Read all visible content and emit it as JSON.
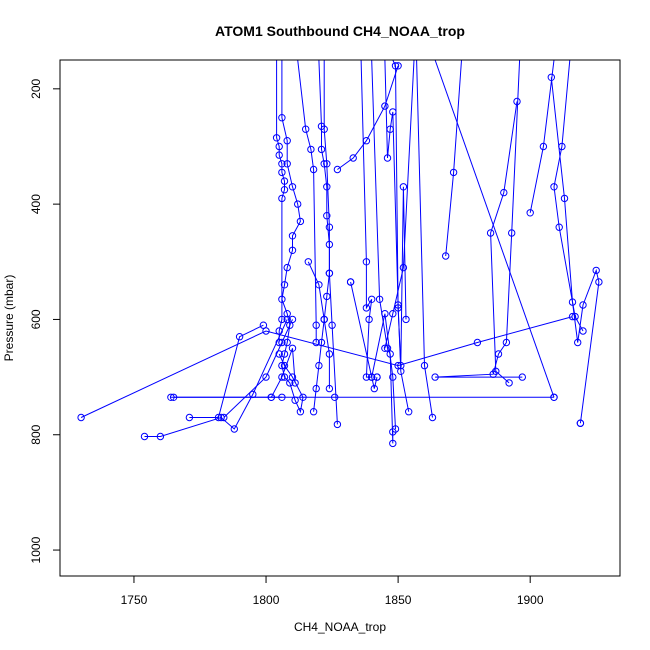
{
  "chart_data": {
    "type": "line",
    "title": "ATOM1 Southbound CH4_NOAA_trop",
    "xlabel": "CH4_NOAA_trop",
    "ylabel": "Pressure (mbar)",
    "xlim": [
      1722,
      1934
    ],
    "ylim": [
      1045,
      150
    ],
    "y_reversed": true,
    "x_ticks": [
      1750,
      1800,
      1850,
      1900
    ],
    "y_ticks": [
      200,
      400,
      600,
      800,
      1000
    ],
    "grid": false,
    "legend": "none",
    "marker": "open-circle",
    "series_color": "#0000ff",
    "series": [
      {
        "x": [
          1806,
          1806,
          1808,
          1808,
          1810,
          1812,
          1813,
          1810,
          1810,
          1808,
          1807,
          1806,
          1808,
          1809,
          1808,
          1807,
          1806,
          1807,
          1809,
          1811,
          1813,
          1814,
          1810,
          1807,
          1805
        ],
        "y": [
          150,
          250,
          290,
          330,
          370,
          400,
          430,
          455,
          480,
          510,
          540,
          565,
          590,
          610,
          640,
          660,
          680,
          700,
          710,
          740,
          760,
          735,
          700,
          680,
          660
        ]
      },
      {
        "x": [
          1804,
          1804,
          1805,
          1805,
          1806,
          1806,
          1807,
          1807,
          1806,
          1806,
          1805,
          1805
        ],
        "y": [
          150,
          285,
          300,
          315,
          330,
          345,
          360,
          375,
          390,
          600,
          620,
          640
        ]
      },
      {
        "x": [
          1820,
          1821,
          1821,
          1822,
          1823,
          1823,
          1824,
          1824,
          1823,
          1822,
          1821,
          1820,
          1819,
          1818
        ],
        "y": [
          150,
          265,
          305,
          330,
          370,
          420,
          470,
          520,
          560,
          600,
          640,
          680,
          720,
          760
        ]
      },
      {
        "x": [
          1822,
          1822,
          1823,
          1824,
          1824,
          1825,
          1827
        ],
        "y": [
          150,
          270,
          330,
          440,
          520,
          610,
          782
        ]
      },
      {
        "x": [
          1812,
          1815,
          1817,
          1818,
          1819,
          1819
        ],
        "y": [
          150,
          270,
          305,
          340,
          610,
          640
        ]
      },
      {
        "x": [
          1836,
          1838,
          1838,
          1840,
          1839,
          1838,
          1840,
          1841,
          1842,
          1842
        ],
        "y": [
          150,
          500,
          580,
          565,
          600,
          700,
          700,
          720,
          700,
          700
        ]
      },
      {
        "x": [
          1832,
          1832,
          1840,
          1845,
          1848,
          1849
        ],
        "y": [
          535,
          535,
          700,
          590,
          700,
          790
        ]
      },
      {
        "x": [
          1840,
          1843,
          1846,
          1847,
          1848,
          1848
        ],
        "y": [
          150,
          565,
          650,
          660,
          815,
          795
        ]
      },
      {
        "x": [
          1845,
          1846,
          1847,
          1848,
          1850,
          1851,
          1854
        ],
        "y": [
          150,
          320,
          270,
          240,
          575,
          690,
          760
        ]
      },
      {
        "x": [
          1848,
          1849,
          1850,
          1851,
          1852,
          1853
        ],
        "y": [
          150,
          160,
          580,
          680,
          370,
          600
        ]
      },
      {
        "x": [
          1856,
          1852,
          1848,
          1845
        ],
        "y": [
          150,
          510,
          590,
          650
        ]
      },
      {
        "x": [
          1857,
          1860,
          1863
        ],
        "y": [
          150,
          680,
          770
        ]
      },
      {
        "x": [
          1874,
          1871,
          1868
        ],
        "y": [
          150,
          345,
          490
        ]
      },
      {
        "x": [
          1895,
          1890,
          1885,
          1887,
          1892
        ],
        "y": [
          222,
          380,
          450,
          690,
          710
        ]
      },
      {
        "x": [
          1896,
          1893,
          1891,
          1888,
          1886,
          1864,
          1897
        ],
        "y": [
          150,
          450,
          640,
          660,
          695,
          700,
          700
        ]
      },
      {
        "x": [
          1908,
          1913,
          1916,
          1918,
          1920,
          1925,
          1926,
          1919,
          1919
        ],
        "y": [
          180,
          390,
          570,
          640,
          575,
          515,
          535,
          780,
          780
        ]
      },
      {
        "x": [
          1915,
          1912,
          1909,
          1911,
          1917,
          1920
        ],
        "y": [
          150,
          300,
          370,
          440,
          595,
          620
        ]
      },
      {
        "x": [
          1909,
          1905,
          1900
        ],
        "y": [
          150,
          300,
          415
        ]
      },
      {
        "x": [
          1864,
          1909
        ],
        "y": [
          150,
          735
        ]
      },
      {
        "x": [
          1730,
          1800,
          1850,
          1880,
          1916
        ],
        "y": [
          770,
          620,
          680,
          640,
          595
        ]
      },
      {
        "x": [
          1764,
          1826,
          1909
        ],
        "y": [
          735,
          735,
          735
        ]
      },
      {
        "x": [
          1754,
          1760,
          1783,
          1788,
          1795,
          1808
        ],
        "y": [
          803,
          803,
          770,
          790,
          730,
          600
        ]
      },
      {
        "x": [
          1771,
          1782,
          1790,
          1799
        ],
        "y": [
          770,
          770,
          630,
          610
        ]
      },
      {
        "x": [
          1765,
          1802,
          1806
        ],
        "y": [
          735,
          735,
          735
        ]
      },
      {
        "x": [
          1784,
          1800,
          1806,
          1810
        ],
        "y": [
          770,
          700,
          640,
          600
        ]
      },
      {
        "x": [
          1802,
          1806,
          1810,
          1811
        ],
        "y": [
          735,
          700,
          650,
          710
        ]
      },
      {
        "x": [
          1850,
          1845,
          1838,
          1833,
          1827
        ],
        "y": [
          160,
          230,
          290,
          320,
          340
        ]
      },
      {
        "x": [
          1816,
          1820,
          1822,
          1824,
          1824
        ],
        "y": [
          500,
          540,
          600,
          660,
          720
        ]
      }
    ]
  }
}
